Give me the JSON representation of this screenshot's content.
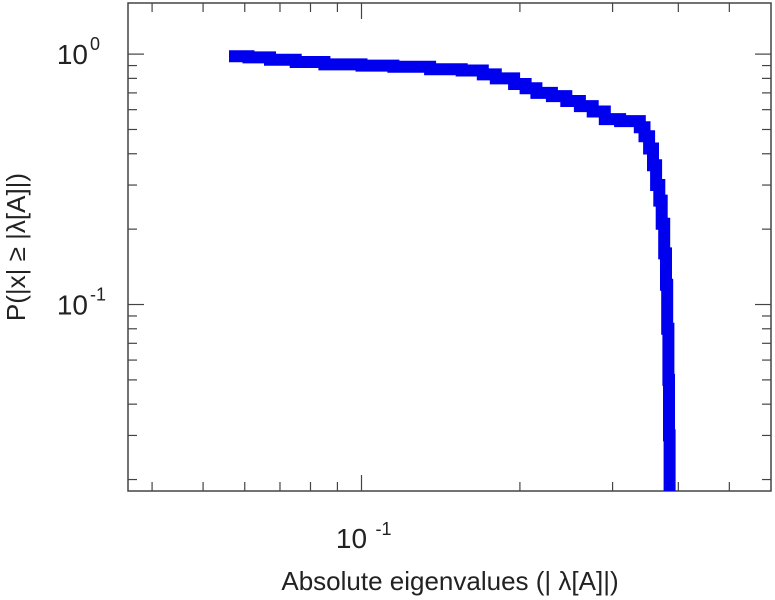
{
  "chart_data": {
    "type": "line",
    "title": "",
    "xlabel": "Absolute eigenvalues (|     λ[A]|)",
    "ylabel": "P(|x|  ≥ |λ[A]|)",
    "x_scale": "log",
    "y_scale": "log",
    "xlim": [
      0.036,
      0.6
    ],
    "ylim": [
      0.018,
      1.6
    ],
    "x_tick_labels": [
      {
        "value": 0.1,
        "base": "10",
        "exp": "-1"
      }
    ],
    "y_tick_labels": [
      {
        "value": 1,
        "base": "10",
        "exp": "0"
      },
      {
        "value": 0.1,
        "base": "10",
        "exp": "-1"
      }
    ],
    "grid": false,
    "series": [
      {
        "color": "#0000ee",
        "points": [
          [
            0.056,
            0.98
          ],
          [
            0.061,
            0.97
          ],
          [
            0.067,
            0.95
          ],
          [
            0.075,
            0.93
          ],
          [
            0.085,
            0.91
          ],
          [
            0.1,
            0.9
          ],
          [
            0.115,
            0.89
          ],
          [
            0.135,
            0.87
          ],
          [
            0.155,
            0.86
          ],
          [
            0.17,
            0.83
          ],
          [
            0.18,
            0.8
          ],
          [
            0.195,
            0.76
          ],
          [
            0.205,
            0.73
          ],
          [
            0.215,
            0.7
          ],
          [
            0.23,
            0.68
          ],
          [
            0.245,
            0.65
          ],
          [
            0.26,
            0.62
          ],
          [
            0.275,
            0.59
          ],
          [
            0.29,
            0.55
          ],
          [
            0.31,
            0.54
          ],
          [
            0.33,
            0.54
          ],
          [
            0.338,
            0.51
          ],
          [
            0.345,
            0.47
          ],
          [
            0.352,
            0.42
          ],
          [
            0.358,
            0.36
          ],
          [
            0.363,
            0.3
          ],
          [
            0.368,
            0.26
          ],
          [
            0.372,
            0.21
          ],
          [
            0.376,
            0.16
          ],
          [
            0.379,
            0.12
          ],
          [
            0.381,
            0.08
          ],
          [
            0.383,
            0.05
          ],
          [
            0.384,
            0.03
          ],
          [
            0.385,
            0.018
          ]
        ]
      }
    ]
  }
}
